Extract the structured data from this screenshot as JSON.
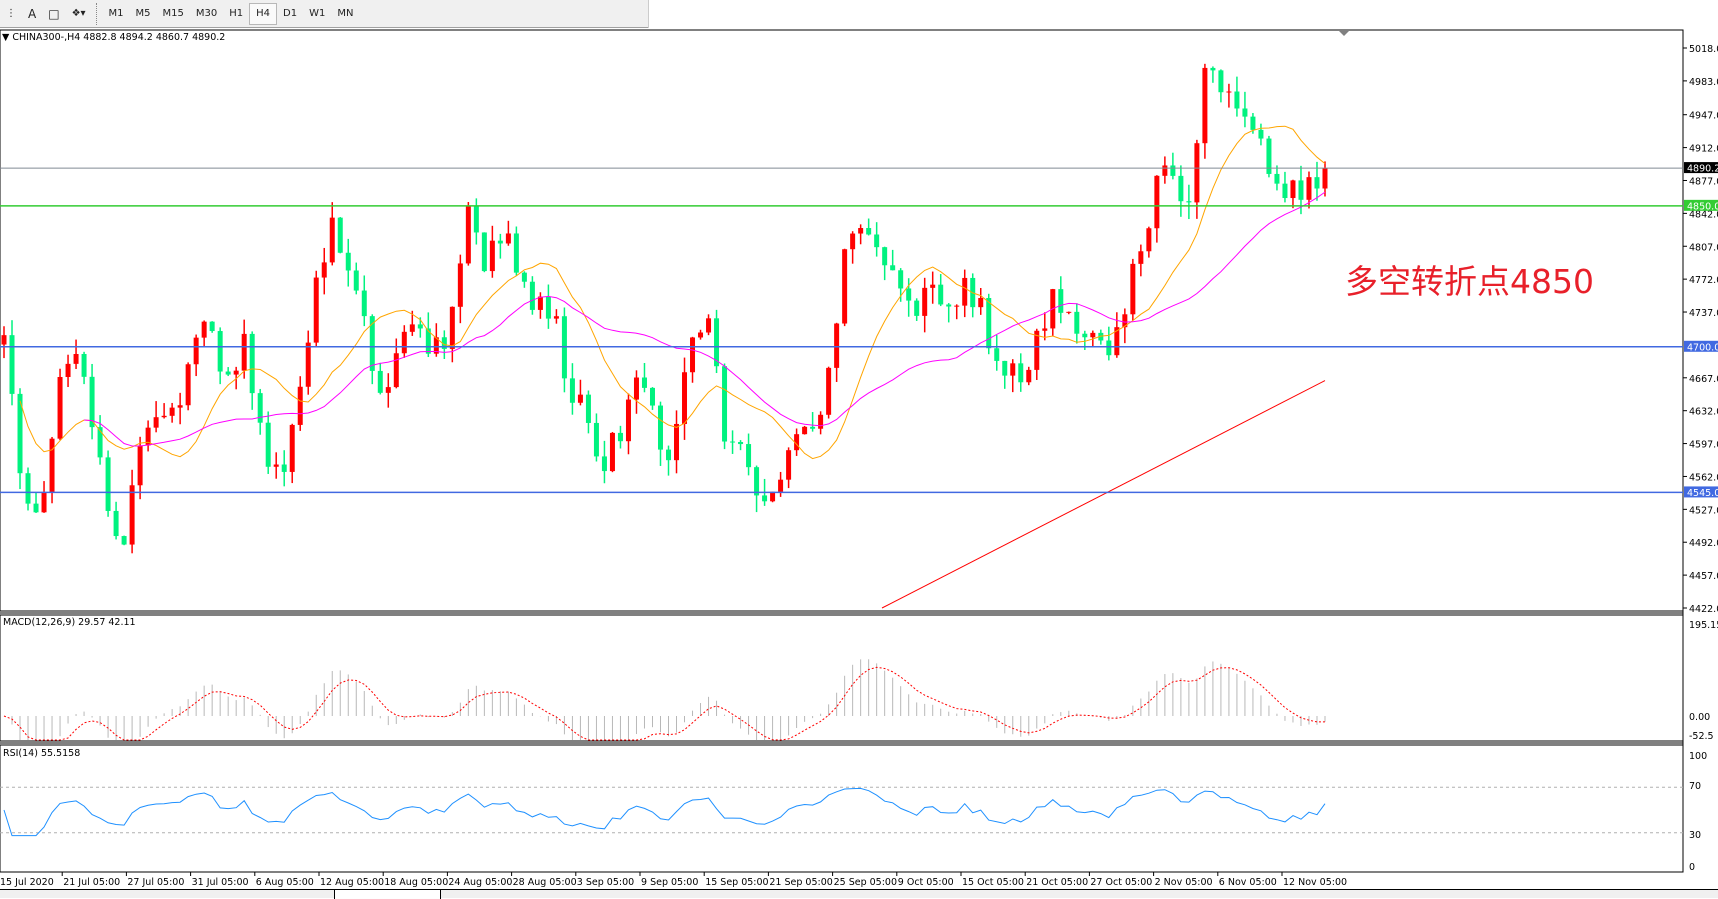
{
  "toolbar": {
    "icons": [
      "period-separator-icon",
      "text-icon",
      "text-label-icon",
      "arrows-icon"
    ],
    "timeframes": [
      "M1",
      "M5",
      "M15",
      "M30",
      "H1",
      "H4",
      "D1",
      "W1",
      "MN"
    ],
    "selected": "H4"
  },
  "header": {
    "symbol_line": "CHINA300-,H4  4882.8 4894.2 4860.7 4890.2"
  },
  "annotation": "多空转折点4850",
  "indicators": {
    "macd_label": "MACD(12,26,9) 29.57 42.11",
    "rsi_label": "RSI(14) 55.5158"
  },
  "colors": {
    "bull": "#ff0000",
    "bear": "#00f27f",
    "ma_fast": "#ffa500",
    "ma_mid": "#ff00ff",
    "ma_slow": "#ff0000",
    "level_green": "#33cc33",
    "level_blue": "#4169e1",
    "current": "#808a94"
  },
  "chart_data": {
    "type": "candlestick",
    "symbol": "CHINA300-",
    "timeframe": "H4",
    "last_ohlc": {
      "open": 4882.8,
      "high": 4894.2,
      "low": 4860.7,
      "close": 4890.2
    },
    "price_ticks": [
      "5018.0",
      "4983.0",
      "4947.0",
      "4912.0",
      "4877.0",
      "4842.0",
      "4807.0",
      "4772.0",
      "4737.0",
      "4667.0",
      "4632.0",
      "4597.0",
      "4562.0",
      "4527.0",
      "4492.0",
      "4457.0",
      "4422.0"
    ],
    "ylim": [
      4422,
      5018
    ],
    "levels": [
      {
        "price": 4890.2,
        "label": "4890.2",
        "kind": "current"
      },
      {
        "price": 4850,
        "label": "4850.0",
        "kind": "green"
      },
      {
        "price": 4700,
        "label": "4700.0",
        "kind": "blue"
      },
      {
        "price": 4545,
        "label": "4545.0",
        "kind": "blue"
      }
    ],
    "time_ticks": [
      "15 Jul 2020",
      "21 Jul 05:00",
      "27 Jul 05:00",
      "31 Jul 05:00",
      "6 Aug 05:00",
      "12 Aug 05:00",
      "18 Aug 05:00",
      "24 Aug 05:00",
      "28 Aug 05:00",
      "3 Sep 05:00",
      "9 Sep 05:00",
      "15 Sep 05:00",
      "21 Sep 05:00",
      "25 Sep 05:00",
      "9 Oct 05:00",
      "15 Oct 05:00",
      "21 Oct 05:00",
      "27 Oct 05:00",
      "2 Nov 05:00",
      "6 Nov 05:00",
      "12 Nov 05:00"
    ],
    "close_path": [
      4700,
      4560,
      4500,
      4640,
      4720,
      4620,
      4533,
      4500,
      4610,
      4640,
      4630,
      4720,
      4740,
      4650,
      4700,
      4600,
      4560,
      4640,
      4740,
      4830,
      4800,
      4720,
      4660,
      4700,
      4730,
      4700,
      4720,
      4840,
      4790,
      4830,
      4790,
      4740,
      4730,
      4650,
      4620,
      4580,
      4600,
      4660,
      4620,
      4580,
      4700,
      4730,
      4600,
      4580,
      4530,
      4560,
      4590,
      4600,
      4660,
      4790,
      4820,
      4800,
      4790,
      4740,
      4760,
      4730,
      4760,
      4740,
      4680,
      4660,
      4700,
      4740,
      4760,
      4700,
      4690,
      4740,
      4780,
      4860,
      4880,
      4840,
      4990,
      4990,
      4960,
      4920,
      4890,
      4860,
      4880,
      4890.2
    ],
    "ma_slow_visible": [
      4422,
      4664
    ],
    "macd": {
      "params": [
        12,
        26,
        9
      ],
      "main": 29.57,
      "signal": 42.11,
      "ticks": [
        "195.15",
        "0.00",
        "-52.5"
      ]
    },
    "rsi": {
      "period": 14,
      "value": 55.5158,
      "ticks": [
        "100",
        "70",
        "30",
        "0"
      ]
    }
  }
}
